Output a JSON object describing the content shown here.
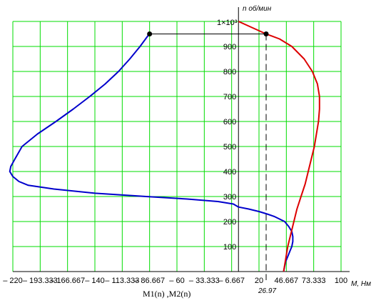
{
  "chart_data": {
    "type": "line",
    "xlabel": "M, Нм",
    "ylabel": "n  об/мин",
    "footer_label": "M1(n) ,M2(n)",
    "x_marker_label": "26.97",
    "y_top_label": "1×10³",
    "xlim": [
      -220,
      100
    ],
    "ylim": [
      0,
      1000
    ],
    "x_ticks": [
      -220,
      -193.333,
      -166.667,
      -140,
      -113.333,
      -86.667,
      -60,
      -33.333,
      -6.667,
      20,
      46.667,
      73.333,
      100
    ],
    "x_tick_labels": [
      "– 220",
      "– 193.333",
      "– 166.667",
      "– 140",
      "– 113.333",
      "– 86.667",
      "– 60",
      "– 33.333",
      "– 6.667",
      "20",
      "46.667",
      "73.333",
      "100"
    ],
    "y_ticks": [
      100,
      200,
      300,
      400,
      500,
      600,
      700,
      800,
      900
    ],
    "y_tick_labels": [
      "100",
      "200",
      "300",
      "400",
      "500",
      "600",
      "700",
      "800",
      "900"
    ],
    "grid": true,
    "grid_color": "#00dd00",
    "series": [
      {
        "color": "#0000cc",
        "points": [
          [
            -87,
            950
          ],
          [
            -96,
            900
          ],
          [
            -106,
            850
          ],
          [
            -117,
            800
          ],
          [
            -130,
            750
          ],
          [
            -145,
            700
          ],
          [
            -161,
            650
          ],
          [
            -178,
            600
          ],
          [
            -196,
            550
          ],
          [
            -211,
            500
          ],
          [
            -218,
            450
          ],
          [
            -222,
            420
          ],
          [
            -223,
            400
          ],
          [
            -220,
            380
          ],
          [
            -214,
            360
          ],
          [
            -205,
            345
          ],
          [
            -180,
            330
          ],
          [
            -140,
            313
          ],
          [
            -90,
            300
          ],
          [
            -50,
            290
          ],
          [
            -20,
            280
          ],
          [
            -5,
            270
          ],
          [
            0,
            258
          ],
          [
            10,
            250
          ],
          [
            20,
            240
          ],
          [
            28,
            230
          ],
          [
            35,
            220
          ],
          [
            40,
            210
          ],
          [
            45,
            200
          ],
          [
            49,
            180
          ],
          [
            52,
            160
          ],
          [
            53,
            140
          ],
          [
            53,
            120
          ],
          [
            52,
            100
          ],
          [
            50,
            80
          ],
          [
            48,
            60
          ],
          [
            46,
            40
          ],
          [
            45,
            20
          ],
          [
            44,
            0
          ]
        ]
      },
      {
        "color": "#dd0000",
        "points": [
          [
            0,
            1000
          ],
          [
            26.97,
            950
          ],
          [
            40,
            930
          ],
          [
            52,
            900
          ],
          [
            64,
            850
          ],
          [
            72,
            800
          ],
          [
            77,
            750
          ],
          [
            79,
            700
          ],
          [
            79,
            650
          ],
          [
            78,
            600
          ],
          [
            76,
            550
          ],
          [
            74,
            500
          ],
          [
            71,
            450
          ],
          [
            68,
            400
          ],
          [
            65,
            350
          ],
          [
            61,
            300
          ],
          [
            57,
            250
          ],
          [
            54,
            200
          ],
          [
            51,
            150
          ],
          [
            48,
            100
          ],
          [
            46,
            50
          ],
          [
            44,
            0
          ]
        ]
      }
    ],
    "markers": [
      [
        -86.667,
        950
      ],
      [
        26.97,
        950
      ]
    ]
  }
}
